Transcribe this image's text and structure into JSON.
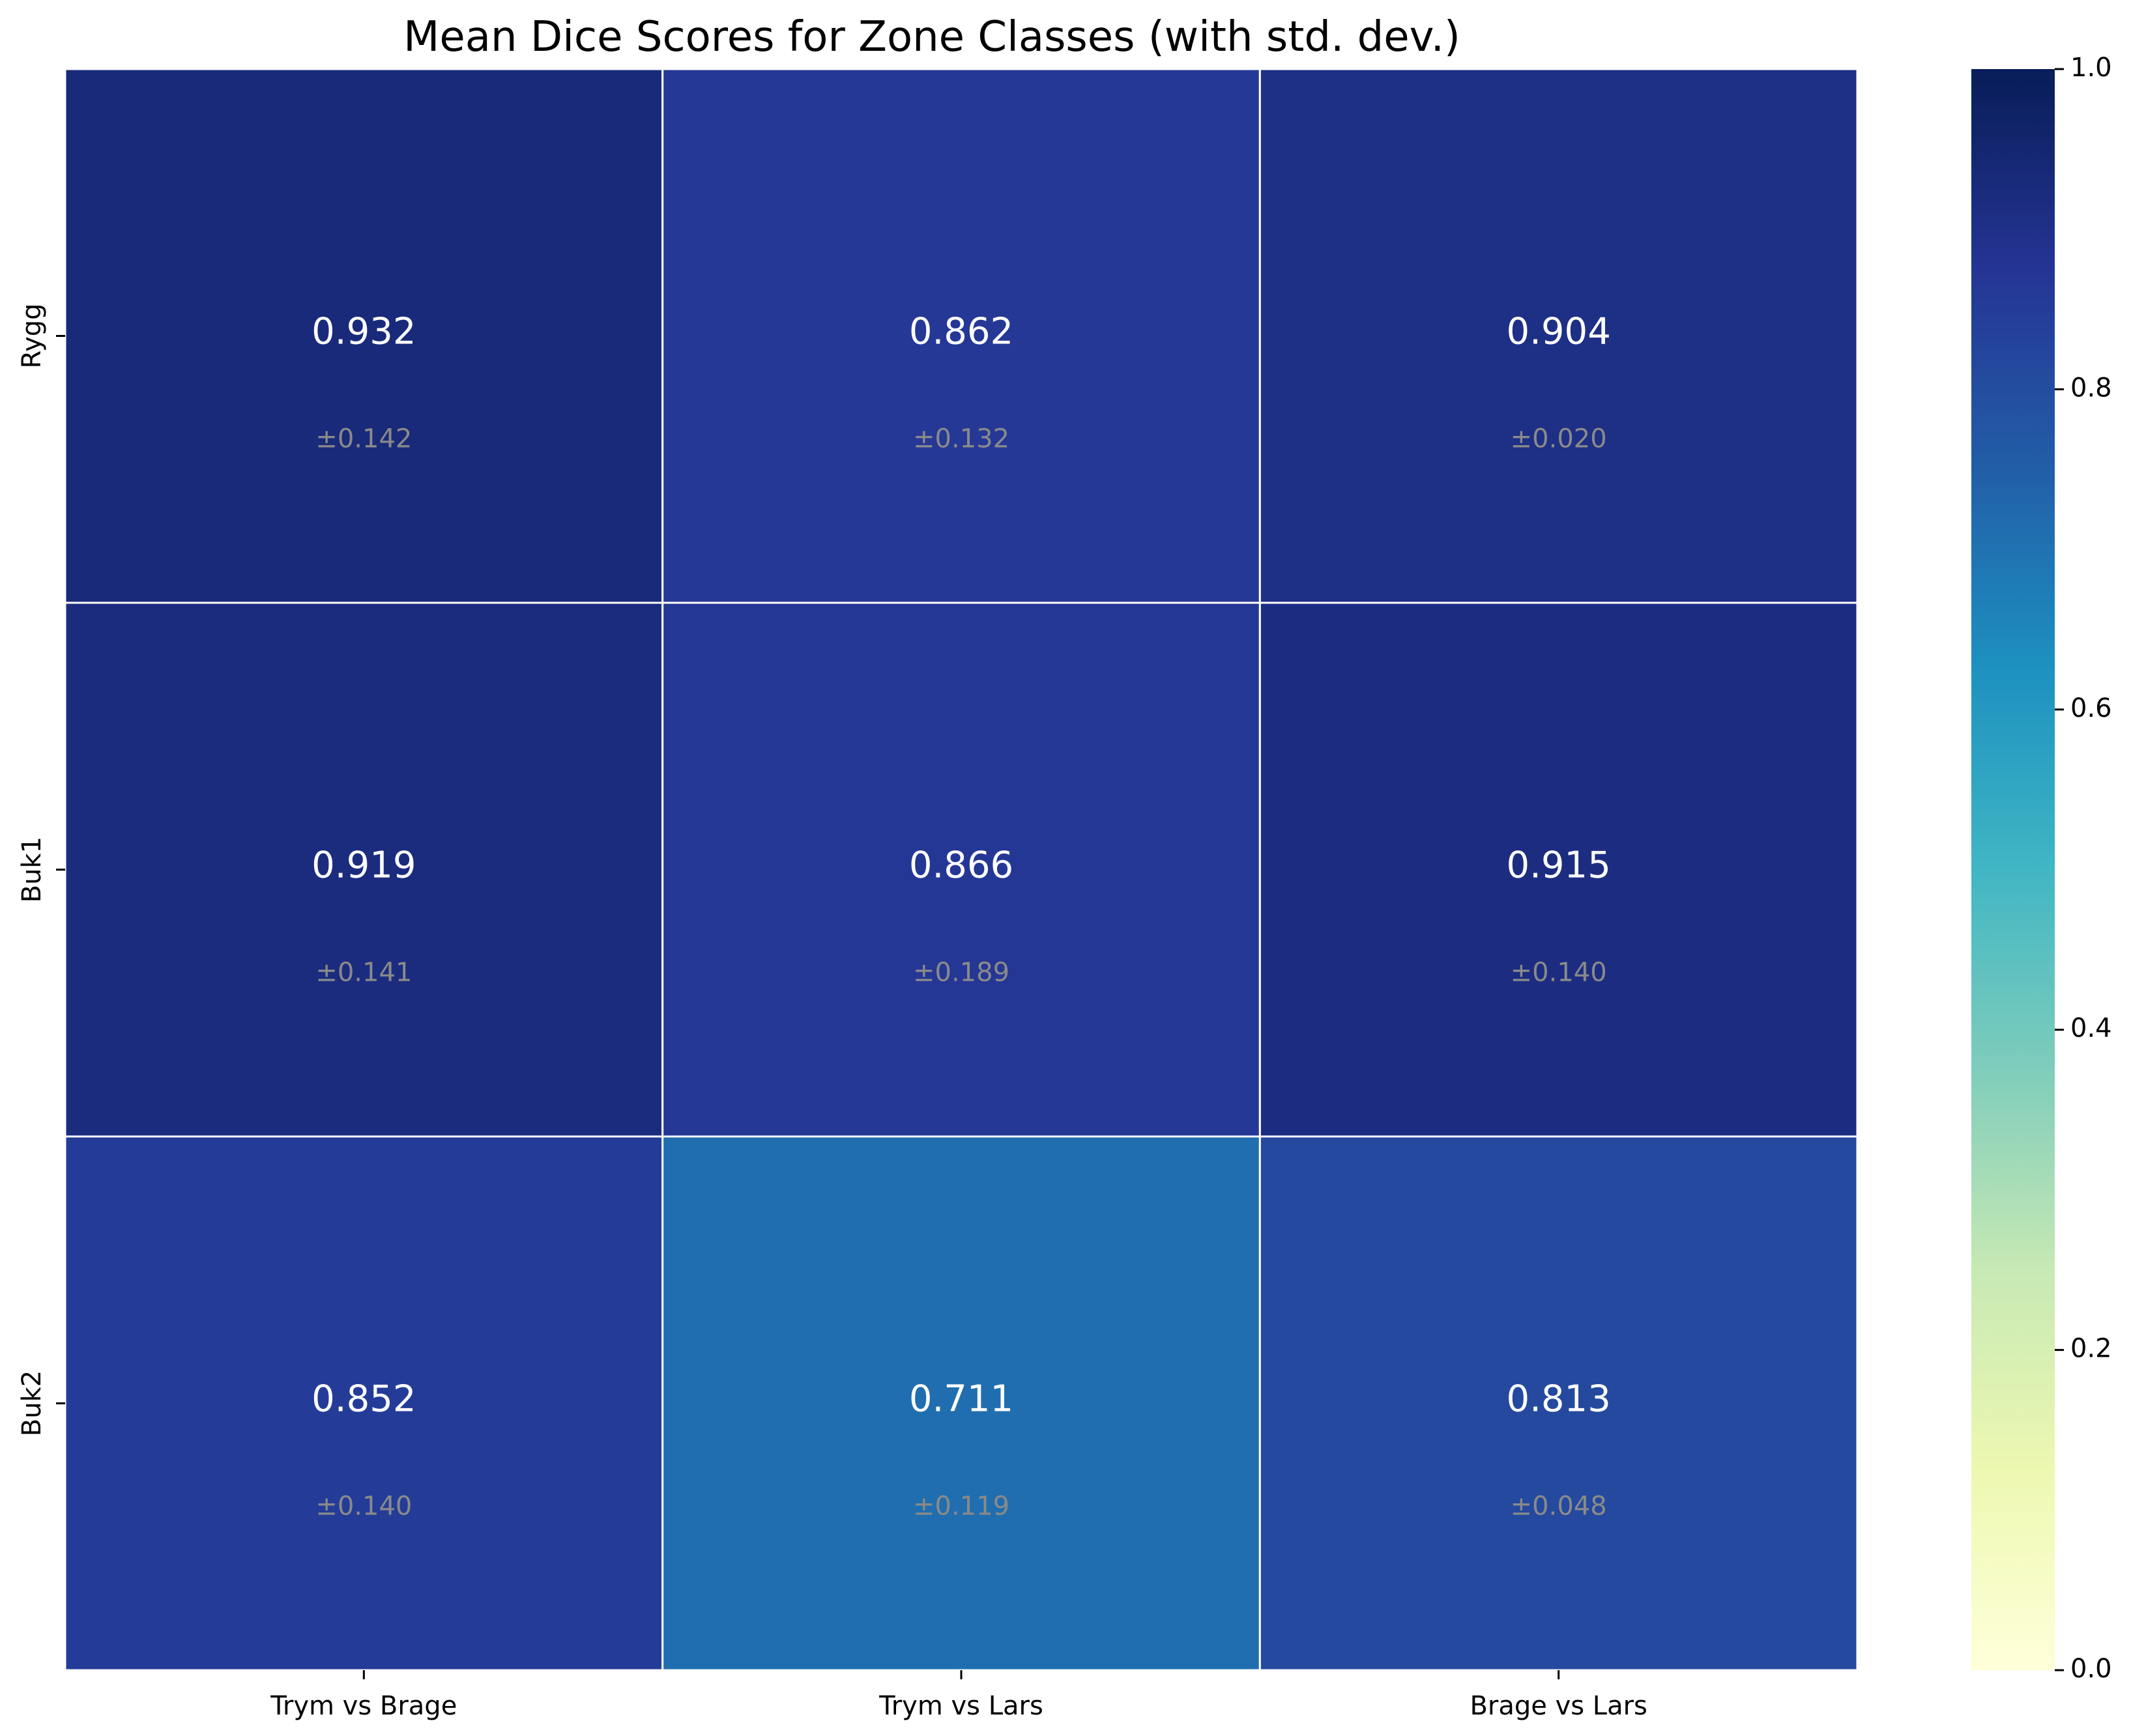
{
  "chart_data": {
    "type": "heatmap",
    "title": "Mean Dice Scores for Zone Classes (with std. dev.)",
    "x_categories": [
      "Trym vs Brage",
      "Trym vs Lars",
      "Brage vs Lars"
    ],
    "y_categories": [
      "Rygg",
      "Buk1",
      "Buk2"
    ],
    "values": [
      [
        0.932,
        0.862,
        0.904
      ],
      [
        0.919,
        0.866,
        0.915
      ],
      [
        0.852,
        0.711,
        0.813
      ]
    ],
    "value_labels": [
      [
        "0.932",
        "0.862",
        "0.904"
      ],
      [
        "0.919",
        "0.866",
        "0.915"
      ],
      [
        "0.852",
        "0.711",
        "0.813"
      ]
    ],
    "std_labels": [
      [
        "±0.142",
        "±0.132",
        "±0.020"
      ],
      [
        "±0.141",
        "±0.189",
        "±0.140"
      ],
      [
        "±0.140",
        "±0.119",
        "±0.048"
      ]
    ],
    "colorbar": {
      "range": [
        0.0,
        1.0
      ],
      "ticks": [
        "0.0",
        "0.2",
        "0.4",
        "0.6",
        "0.8",
        "1.0"
      ],
      "colormap": "YlGnBu",
      "stops": [
        "#ffffd9",
        "#edf8b1",
        "#c7e9b4",
        "#7fcdbb",
        "#41b6c4",
        "#1d91c0",
        "#225ea8",
        "#253494",
        "#081d58"
      ]
    },
    "grid": false,
    "cell_border_color": "#ffffff"
  }
}
